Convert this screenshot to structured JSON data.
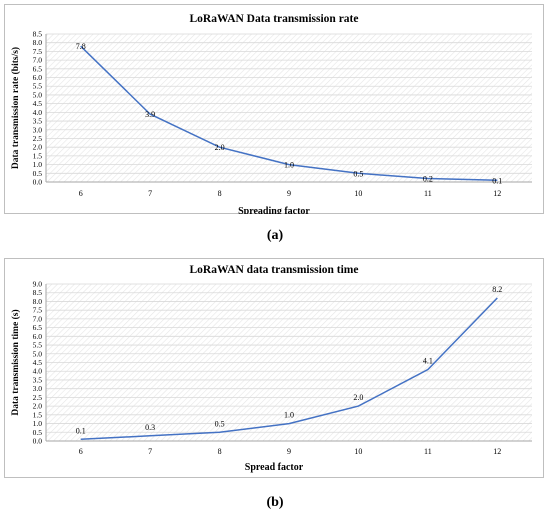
{
  "charts": [
    {
      "id": "a",
      "caption": "(a)",
      "chart_data": {
        "type": "line",
        "title": "LoRaWAN Data transmission rate",
        "xlabel": "Spreading  factor",
        "ylabel": "Data transmission  rate  (bits/s)",
        "x": [
          6,
          7,
          8,
          9,
          10,
          11,
          12
        ],
        "x_tick_labels": [
          "6",
          "7",
          "8",
          "9",
          "10",
          "11",
          "12"
        ],
        "ylim": [
          0,
          8.5
        ],
        "y_ticks": [
          0.0,
          0.5,
          1.0,
          1.5,
          2.0,
          2.5,
          3.0,
          3.5,
          4.0,
          4.5,
          5.0,
          5.5,
          6.0,
          6.5,
          7.0,
          7.5,
          8.0,
          8.5
        ],
        "series": [
          {
            "values": [
              7.8,
              3.9,
              2.0,
              1.0,
              0.5,
              0.2,
              0.1
            ],
            "data_labels": [
              "7.8",
              "3.9",
              "2.0",
              "1.0",
              "0.5",
              "0.2",
              "0.1"
            ],
            "color": "#4472c4"
          }
        ],
        "grid": true,
        "label_position": "on-line"
      }
    },
    {
      "id": "b",
      "caption": "(b)",
      "chart_data": {
        "type": "line",
        "title": "LoRaWAN data transmission time",
        "xlabel": "Spread factor",
        "ylabel": "Data transmission  time (s)",
        "x": [
          6,
          7,
          8,
          9,
          10,
          11,
          12
        ],
        "x_tick_labels": [
          "6",
          "7",
          "8",
          "9",
          "10",
          "11",
          "12"
        ],
        "ylim": [
          0,
          9
        ],
        "y_ticks": [
          0.0,
          0.5,
          1.0,
          1.5,
          2.0,
          2.5,
          3.0,
          3.5,
          4.0,
          4.5,
          5.0,
          5.5,
          6.0,
          6.5,
          7.0,
          7.5,
          8.0,
          8.5,
          9.0
        ],
        "series": [
          {
            "values": [
              0.1,
              0.3,
              0.5,
              1.0,
              2.0,
              4.1,
              8.2
            ],
            "data_labels": [
              "0.1",
              "0.3",
              "0.5",
              "1.0",
              "2.0",
              "4.1",
              "8.2"
            ],
            "color": "#4472c4"
          }
        ],
        "grid": true,
        "label_position": "above"
      }
    }
  ]
}
